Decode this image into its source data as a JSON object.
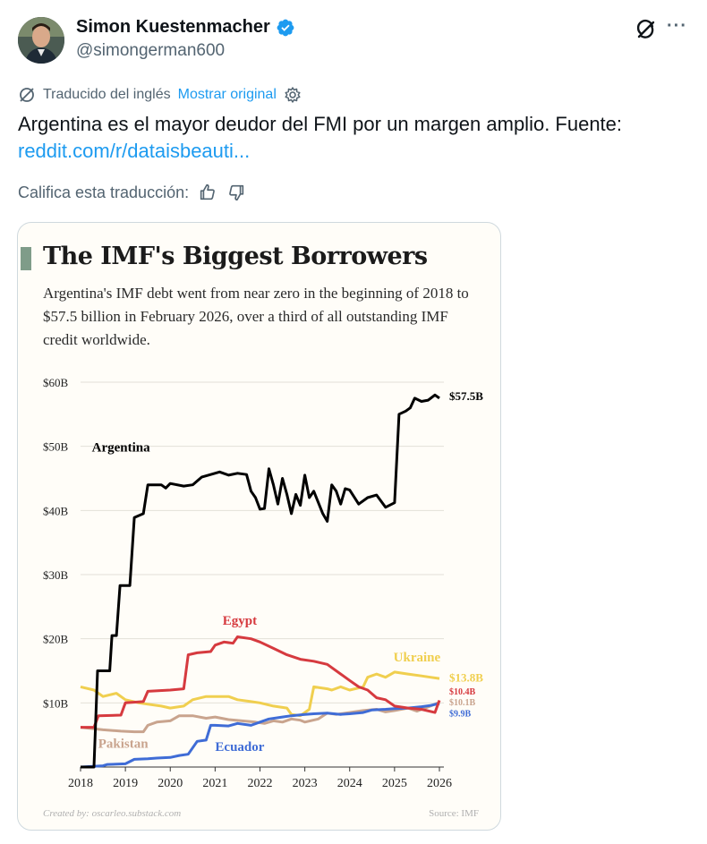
{
  "author": {
    "name": "Simon Kuestenmacher",
    "handle": "@simongerman600"
  },
  "translation": {
    "translated_from": "Traducido del inglés",
    "show_original": "Mostrar original"
  },
  "tweet": {
    "text": "Argentina es el mayor deudor del FMI por un margen amplio. Fuente:",
    "link": "reddit.com/r/dataisbeauti..."
  },
  "rate": {
    "label": "Califica esta traducción:"
  },
  "chart": {
    "title": "The IMF's Biggest Borrowers",
    "subtitle": "Argentina's IMF debt went from near zero in the beginning of 2018 to $57.5 billion in February 2026, over a third of all outstanding IMF credit worldwide.",
    "credit": "Created by: oscarleo.substack.com",
    "source": "Source: IMF"
  },
  "colors": {
    "argentina": "#000000",
    "egypt": "#d63a3f",
    "ukraine": "#f0cf4f",
    "pakistan": "#c9a48e",
    "ecuador": "#3f6cd6",
    "link": "#1d9bf0",
    "verified": "#1d9bf0"
  },
  "chart_data": {
    "type": "line",
    "title": "The IMF's Biggest Borrowers",
    "xlabel": "",
    "ylabel": "",
    "x_ticks": [
      "2018",
      "2019",
      "2020",
      "2021",
      "2022",
      "2023",
      "2024",
      "2025",
      "2026"
    ],
    "y_ticks": [
      "$60B",
      "$50B",
      "$40B",
      "$30B",
      "$20B",
      "$10B"
    ],
    "xlim": [
      2018,
      2026.1
    ],
    "ylim": [
      0,
      60
    ],
    "grid": true,
    "series": [
      {
        "name": "Argentina",
        "end_label": "$57.5B",
        "points": [
          [
            2018.0,
            0
          ],
          [
            2018.3,
            0
          ],
          [
            2018.38,
            15
          ],
          [
            2018.65,
            15
          ],
          [
            2018.7,
            20.5
          ],
          [
            2018.8,
            20.5
          ],
          [
            2018.88,
            28.3
          ],
          [
            2019.1,
            28.3
          ],
          [
            2019.2,
            38.9
          ],
          [
            2019.4,
            39.5
          ],
          [
            2019.5,
            44
          ],
          [
            2019.8,
            44
          ],
          [
            2019.9,
            43.5
          ],
          [
            2020.0,
            44.2
          ],
          [
            2020.3,
            43.8
          ],
          [
            2020.5,
            44
          ],
          [
            2020.7,
            45.2
          ],
          [
            2020.9,
            45.6
          ],
          [
            2021.1,
            46
          ],
          [
            2021.3,
            45.5
          ],
          [
            2021.5,
            45.8
          ],
          [
            2021.7,
            45.6
          ],
          [
            2021.8,
            43
          ],
          [
            2021.9,
            42
          ],
          [
            2022.0,
            40.2
          ],
          [
            2022.1,
            40.3
          ],
          [
            2022.2,
            46.5
          ],
          [
            2022.3,
            44
          ],
          [
            2022.4,
            41
          ],
          [
            2022.5,
            45
          ],
          [
            2022.6,
            42.5
          ],
          [
            2022.7,
            39.5
          ],
          [
            2022.8,
            42.5
          ],
          [
            2022.9,
            40.8
          ],
          [
            2023.0,
            45.5
          ],
          [
            2023.1,
            42
          ],
          [
            2023.2,
            43
          ],
          [
            2023.4,
            39.5
          ],
          [
            2023.5,
            38.3
          ],
          [
            2023.6,
            44
          ],
          [
            2023.7,
            43
          ],
          [
            2023.8,
            41
          ],
          [
            2023.9,
            43.4
          ],
          [
            2024.0,
            43.2
          ],
          [
            2024.2,
            41
          ],
          [
            2024.4,
            42
          ],
          [
            2024.6,
            42.4
          ],
          [
            2024.8,
            40.5
          ],
          [
            2025.0,
            41.2
          ],
          [
            2025.1,
            55
          ],
          [
            2025.25,
            55.5
          ],
          [
            2025.35,
            56
          ],
          [
            2025.45,
            57.5
          ],
          [
            2025.6,
            57
          ],
          [
            2025.75,
            57.2
          ],
          [
            2025.9,
            58
          ],
          [
            2026.0,
            57.5
          ]
        ]
      },
      {
        "name": "Egypt",
        "end_label": "$10.4B",
        "points": [
          [
            2018.0,
            6.2
          ],
          [
            2018.3,
            6.2
          ],
          [
            2018.4,
            8
          ],
          [
            2018.9,
            8.1
          ],
          [
            2019.0,
            10
          ],
          [
            2019.4,
            10.2
          ],
          [
            2019.5,
            11.8
          ],
          [
            2020.0,
            12
          ],
          [
            2020.3,
            12.2
          ],
          [
            2020.4,
            17.5
          ],
          [
            2020.6,
            17.8
          ],
          [
            2020.9,
            18
          ],
          [
            2021.0,
            19
          ],
          [
            2021.2,
            19.5
          ],
          [
            2021.4,
            19.3
          ],
          [
            2021.5,
            20.3
          ],
          [
            2021.8,
            20
          ],
          [
            2022.0,
            19.5
          ],
          [
            2022.3,
            18.5
          ],
          [
            2022.6,
            17.5
          ],
          [
            2022.9,
            16.8
          ],
          [
            2023.2,
            16.5
          ],
          [
            2023.5,
            16
          ],
          [
            2023.8,
            14.5
          ],
          [
            2024.0,
            13.5
          ],
          [
            2024.2,
            12.5
          ],
          [
            2024.4,
            12
          ],
          [
            2024.6,
            10.8
          ],
          [
            2024.8,
            10.5
          ],
          [
            2025.0,
            9.5
          ],
          [
            2025.3,
            9.2
          ],
          [
            2025.6,
            9
          ],
          [
            2025.9,
            8.5
          ],
          [
            2026.0,
            10.4
          ]
        ]
      },
      {
        "name": "Ukraine",
        "end_label": "$13.8B",
        "points": [
          [
            2018.0,
            12.5
          ],
          [
            2018.3,
            12
          ],
          [
            2018.5,
            11
          ],
          [
            2018.8,
            11.5
          ],
          [
            2019.0,
            10.5
          ],
          [
            2019.3,
            10
          ],
          [
            2019.5,
            9.8
          ],
          [
            2019.8,
            9.5
          ],
          [
            2020.0,
            9.2
          ],
          [
            2020.3,
            9.5
          ],
          [
            2020.5,
            10.5
          ],
          [
            2020.8,
            11
          ],
          [
            2021.0,
            11
          ],
          [
            2021.3,
            11
          ],
          [
            2021.5,
            10.5
          ],
          [
            2021.8,
            10.2
          ],
          [
            2022.0,
            10
          ],
          [
            2022.3,
            9.5
          ],
          [
            2022.6,
            9.2
          ],
          [
            2022.7,
            8.2
          ],
          [
            2022.9,
            8
          ],
          [
            2023.1,
            9
          ],
          [
            2023.2,
            12.5
          ],
          [
            2023.5,
            12.2
          ],
          [
            2023.6,
            12
          ],
          [
            2023.8,
            12.5
          ],
          [
            2024.0,
            12
          ],
          [
            2024.3,
            12.5
          ],
          [
            2024.4,
            14
          ],
          [
            2024.6,
            14.5
          ],
          [
            2024.8,
            14
          ],
          [
            2025.0,
            14.8
          ],
          [
            2025.3,
            14.5
          ],
          [
            2025.6,
            14.2
          ],
          [
            2025.8,
            14
          ],
          [
            2026.0,
            13.8
          ]
        ]
      },
      {
        "name": "Pakistan",
        "end_label": "$10.1B",
        "points": [
          [
            2018.0,
            6.2
          ],
          [
            2018.5,
            5.8
          ],
          [
            2018.9,
            5.6
          ],
          [
            2019.2,
            5.5
          ],
          [
            2019.4,
            5.5
          ],
          [
            2019.5,
            6.5
          ],
          [
            2019.7,
            7
          ],
          [
            2020.0,
            7.2
          ],
          [
            2020.2,
            8
          ],
          [
            2020.5,
            8
          ],
          [
            2020.8,
            7.6
          ],
          [
            2021.0,
            7.8
          ],
          [
            2021.3,
            7.4
          ],
          [
            2021.6,
            7.2
          ],
          [
            2021.9,
            7
          ],
          [
            2022.1,
            6.8
          ],
          [
            2022.3,
            7.2
          ],
          [
            2022.5,
            7
          ],
          [
            2022.7,
            7.5
          ],
          [
            2022.9,
            7.3
          ],
          [
            2023.0,
            7
          ],
          [
            2023.3,
            7.5
          ],
          [
            2023.5,
            8.4
          ],
          [
            2023.7,
            8.2
          ],
          [
            2024.0,
            8.5
          ],
          [
            2024.3,
            8.8
          ],
          [
            2024.6,
            9
          ],
          [
            2024.8,
            8.6
          ],
          [
            2025.0,
            8.8
          ],
          [
            2025.3,
            9.2
          ],
          [
            2025.5,
            8.7
          ],
          [
            2025.8,
            9.5
          ],
          [
            2026.0,
            10.1
          ]
        ]
      },
      {
        "name": "Ecuador",
        "end_label": "$9.9B",
        "points": [
          [
            2018.0,
            0
          ],
          [
            2018.5,
            0.2
          ],
          [
            2018.6,
            0.4
          ],
          [
            2019.0,
            0.5
          ],
          [
            2019.2,
            1.2
          ],
          [
            2019.5,
            1.3
          ],
          [
            2019.7,
            1.4
          ],
          [
            2020.0,
            1.5
          ],
          [
            2020.2,
            1.8
          ],
          [
            2020.4,
            2
          ],
          [
            2020.6,
            4
          ],
          [
            2020.8,
            4.2
          ],
          [
            2020.9,
            6.5
          ],
          [
            2021.0,
            6.5
          ],
          [
            2021.3,
            6.4
          ],
          [
            2021.5,
            6.8
          ],
          [
            2021.8,
            6.5
          ],
          [
            2022.0,
            7
          ],
          [
            2022.2,
            7.5
          ],
          [
            2022.5,
            7.8
          ],
          [
            2022.7,
            8
          ],
          [
            2023.0,
            8.2
          ],
          [
            2023.2,
            8.3
          ],
          [
            2023.5,
            8.4
          ],
          [
            2023.8,
            8.2
          ],
          [
            2024.0,
            8.3
          ],
          [
            2024.3,
            8.5
          ],
          [
            2024.5,
            8.9
          ],
          [
            2024.8,
            9
          ],
          [
            2025.0,
            9.1
          ],
          [
            2025.3,
            9.2
          ],
          [
            2025.6,
            9.4
          ],
          [
            2025.8,
            9.6
          ],
          [
            2026.0,
            9.9
          ]
        ]
      }
    ]
  }
}
